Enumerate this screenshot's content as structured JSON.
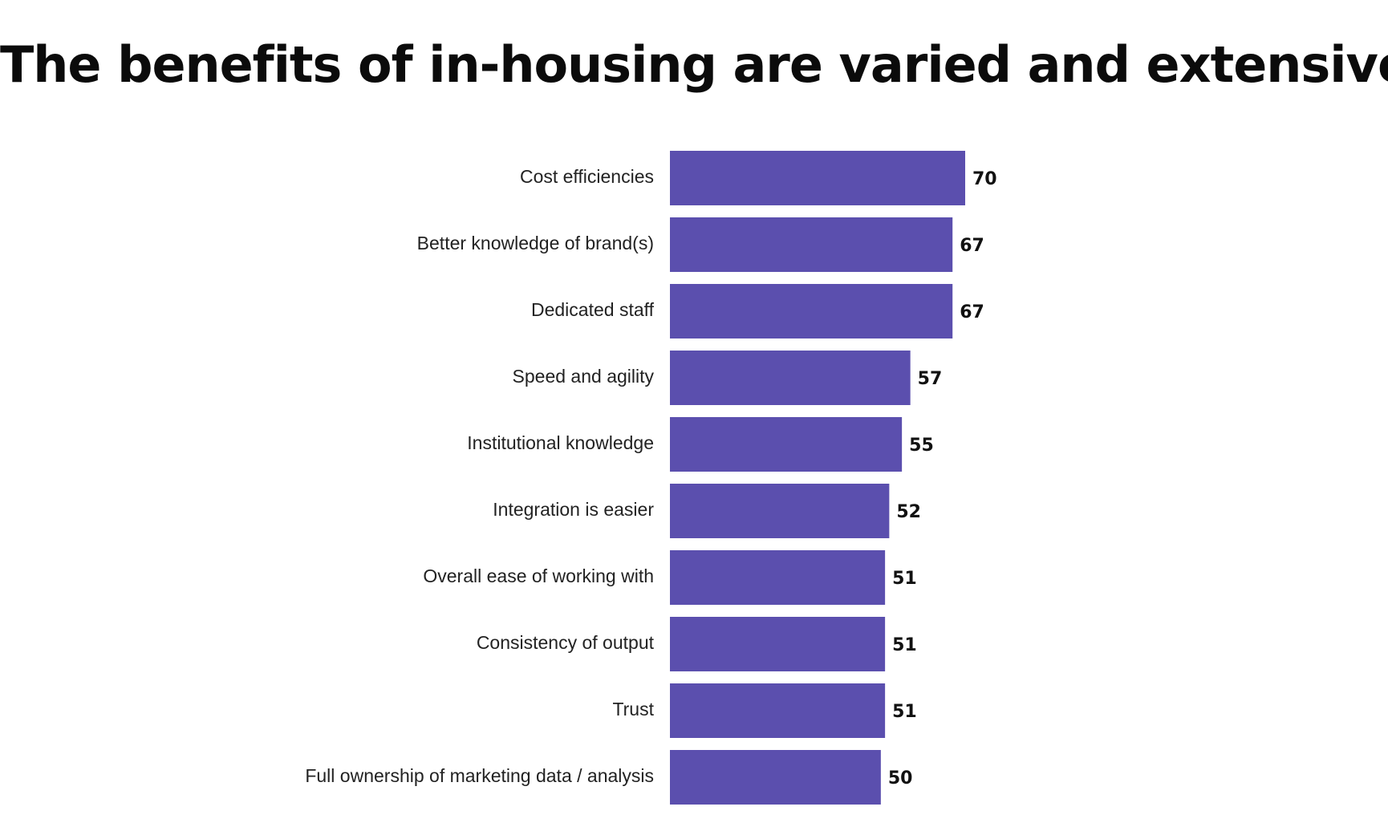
{
  "title": "The benefits of in-housing are varied and extensive",
  "colors": {
    "bar": "#5b4fae",
    "label": "#222222",
    "value": "#111111",
    "background": "#ffffff"
  },
  "chart_data": {
    "type": "bar",
    "orientation": "horizontal",
    "title": "The benefits of in-housing are varied and extensive",
    "xlabel": "",
    "ylabel": "",
    "categories": [
      "Cost efficiencies",
      "Better knowledge of brand(s)",
      "Dedicated staff",
      "Speed and agility",
      "Institutional knowledge",
      "Integration is easier",
      "Overall ease of working with",
      "Consistency of output",
      "Trust",
      "Full ownership of marketing data / analysis"
    ],
    "values": [
      70,
      67,
      67,
      57,
      55,
      52,
      51,
      51,
      51,
      50
    ],
    "xlim": [
      0,
      70
    ],
    "grid": false,
    "legend": "none",
    "data_labels": true
  }
}
